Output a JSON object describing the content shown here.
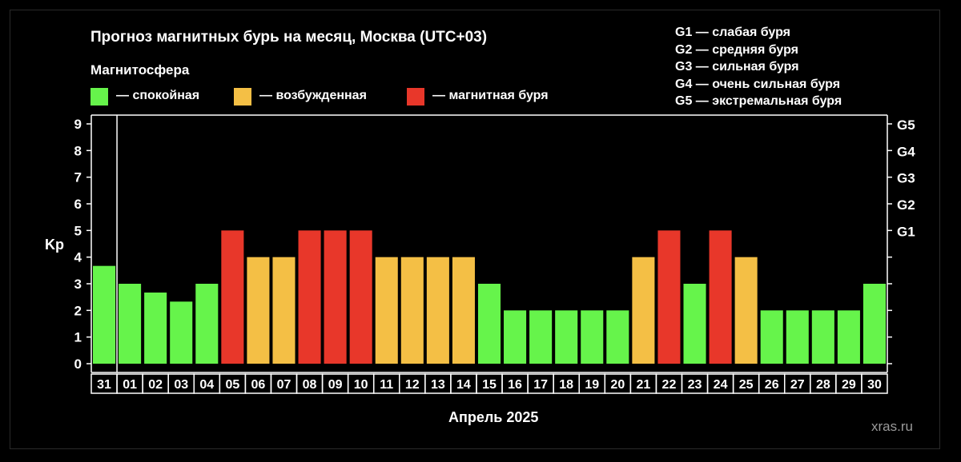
{
  "colors": {
    "background": "#000000",
    "calm": "#66f44b",
    "excited": "#f4bf45",
    "storm": "#e8372a",
    "axis": "#ffffff"
  },
  "title": "Прогноз магнитных бурь на месяц, Москва (UTC+03)",
  "magnetosphere_label": "Магнитосфера",
  "legend": [
    {
      "label": "— спокойная",
      "color": "#66f44b"
    },
    {
      "label": "— возбужденная",
      "color": "#f4bf45"
    },
    {
      "label": "— магнитная буря",
      "color": "#e8372a"
    }
  ],
  "g_scale_legend": [
    "G1 — слабая буря",
    "G2 — средняя буря",
    "G3 — сильная буря",
    "G4 — очень сильная буря",
    "G5 — экстремальная буря"
  ],
  "watermark": "xras.ru",
  "chart_data": {
    "type": "bar",
    "title": "Прогноз магнитных бурь на месяц, Москва (UTC+03)",
    "xlabel": "Апрель 2025",
    "ylabel": "Kp",
    "ylim": [
      0,
      9
    ],
    "yticks": [
      0,
      1,
      2,
      3,
      4,
      5,
      6,
      7,
      8,
      9
    ],
    "right_axis_labels": [
      {
        "kp": 5,
        "label": "G1"
      },
      {
        "kp": 6,
        "label": "G2"
      },
      {
        "kp": 7,
        "label": "G3"
      },
      {
        "kp": 8,
        "label": "G4"
      },
      {
        "kp": 9,
        "label": "G5"
      }
    ],
    "categories": [
      "31",
      "01",
      "02",
      "03",
      "04",
      "05",
      "06",
      "07",
      "08",
      "09",
      "10",
      "11",
      "12",
      "13",
      "14",
      "15",
      "16",
      "17",
      "18",
      "19",
      "20",
      "21",
      "22",
      "23",
      "24",
      "25",
      "26",
      "27",
      "28",
      "29",
      "30"
    ],
    "values": [
      3.67,
      3,
      2.67,
      2.33,
      3,
      5,
      4,
      4,
      5,
      5,
      5,
      4,
      4,
      4,
      4,
      3,
      2,
      2,
      2,
      2,
      2,
      4,
      5,
      3,
      5,
      4,
      2,
      2,
      2,
      2,
      3
    ],
    "levels": [
      "calm",
      "calm",
      "calm",
      "calm",
      "calm",
      "storm",
      "excited",
      "excited",
      "storm",
      "storm",
      "storm",
      "excited",
      "excited",
      "excited",
      "excited",
      "calm",
      "calm",
      "calm",
      "calm",
      "calm",
      "calm",
      "excited",
      "storm",
      "calm",
      "storm",
      "excited",
      "calm",
      "calm",
      "calm",
      "calm",
      "calm"
    ],
    "grid": false,
    "legend_position": "top"
  }
}
